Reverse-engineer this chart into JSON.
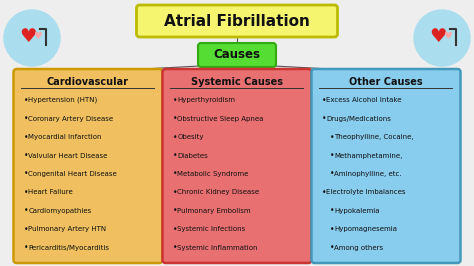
{
  "title": "Atrial Fibrillation",
  "title_box_color": "#F5F570",
  "title_box_edge": "#BBBB00",
  "causes_label": "Causes",
  "causes_box_color": "#55DD33",
  "causes_box_edge": "#33AA11",
  "background_color": "#EEEEEE",
  "line_color": "#555555",
  "columns": [
    {
      "header": "Cardiovascular",
      "box_color": "#F0C060",
      "box_edge": "#CC9900",
      "text_color": "#111111",
      "items": [
        {
          "text": "Hypertension (HTN)",
          "indent": 0
        },
        {
          "text": "Coronary Artery Disease",
          "indent": 0
        },
        {
          "text": "Myocardial Infarction",
          "indent": 0
        },
        {
          "text": "Valvular Heart Disease",
          "indent": 0
        },
        {
          "text": "Congenital Heart Disease",
          "indent": 0
        },
        {
          "text": "Heart Failure",
          "indent": 0
        },
        {
          "text": "Cardiomyopathies",
          "indent": 0
        },
        {
          "text": "Pulmonary Artery HTN",
          "indent": 0
        },
        {
          "text": "Pericarditis/Myocarditis",
          "indent": 0
        }
      ]
    },
    {
      "header": "Systemic Causes",
      "box_color": "#E87070",
      "box_edge": "#CC3333",
      "text_color": "#111111",
      "items": [
        {
          "text": "Hyperthyroidism",
          "indent": 0
        },
        {
          "text": "Obstructive Sleep Apnea",
          "indent": 0
        },
        {
          "text": "Obesity",
          "indent": 0
        },
        {
          "text": "Diabetes",
          "indent": 0
        },
        {
          "text": "Metabolic Syndrome",
          "indent": 0
        },
        {
          "text": "Chronic Kidney Disease",
          "indent": 0
        },
        {
          "text": "Pulmonary Embolism",
          "indent": 0
        },
        {
          "text": "Systemic Infections",
          "indent": 0
        },
        {
          "text": "Systemic Inflammation",
          "indent": 0
        }
      ]
    },
    {
      "header": "Other Causes",
      "box_color": "#88CCEE",
      "box_edge": "#4499BB",
      "text_color": "#111111",
      "items": [
        {
          "text": "Excess Alcohol Intake",
          "indent": 0
        },
        {
          "text": "Drugs/Medications",
          "indent": 0
        },
        {
          "text": "Theophylline, Cocaine,",
          "indent": 1
        },
        {
          "text": "Methamphetamine,",
          "indent": 1
        },
        {
          "text": "Aminophylline, etc.",
          "indent": 1
        },
        {
          "text": "Electrolyte Imbalances",
          "indent": 0
        },
        {
          "text": "Hypokalemia",
          "indent": 1
        },
        {
          "text": "Hypomagnesemia",
          "indent": 1
        },
        {
          "text": "Among others",
          "indent": 1
        }
      ]
    }
  ],
  "figsize": [
    4.74,
    2.66
  ],
  "dpi": 100
}
